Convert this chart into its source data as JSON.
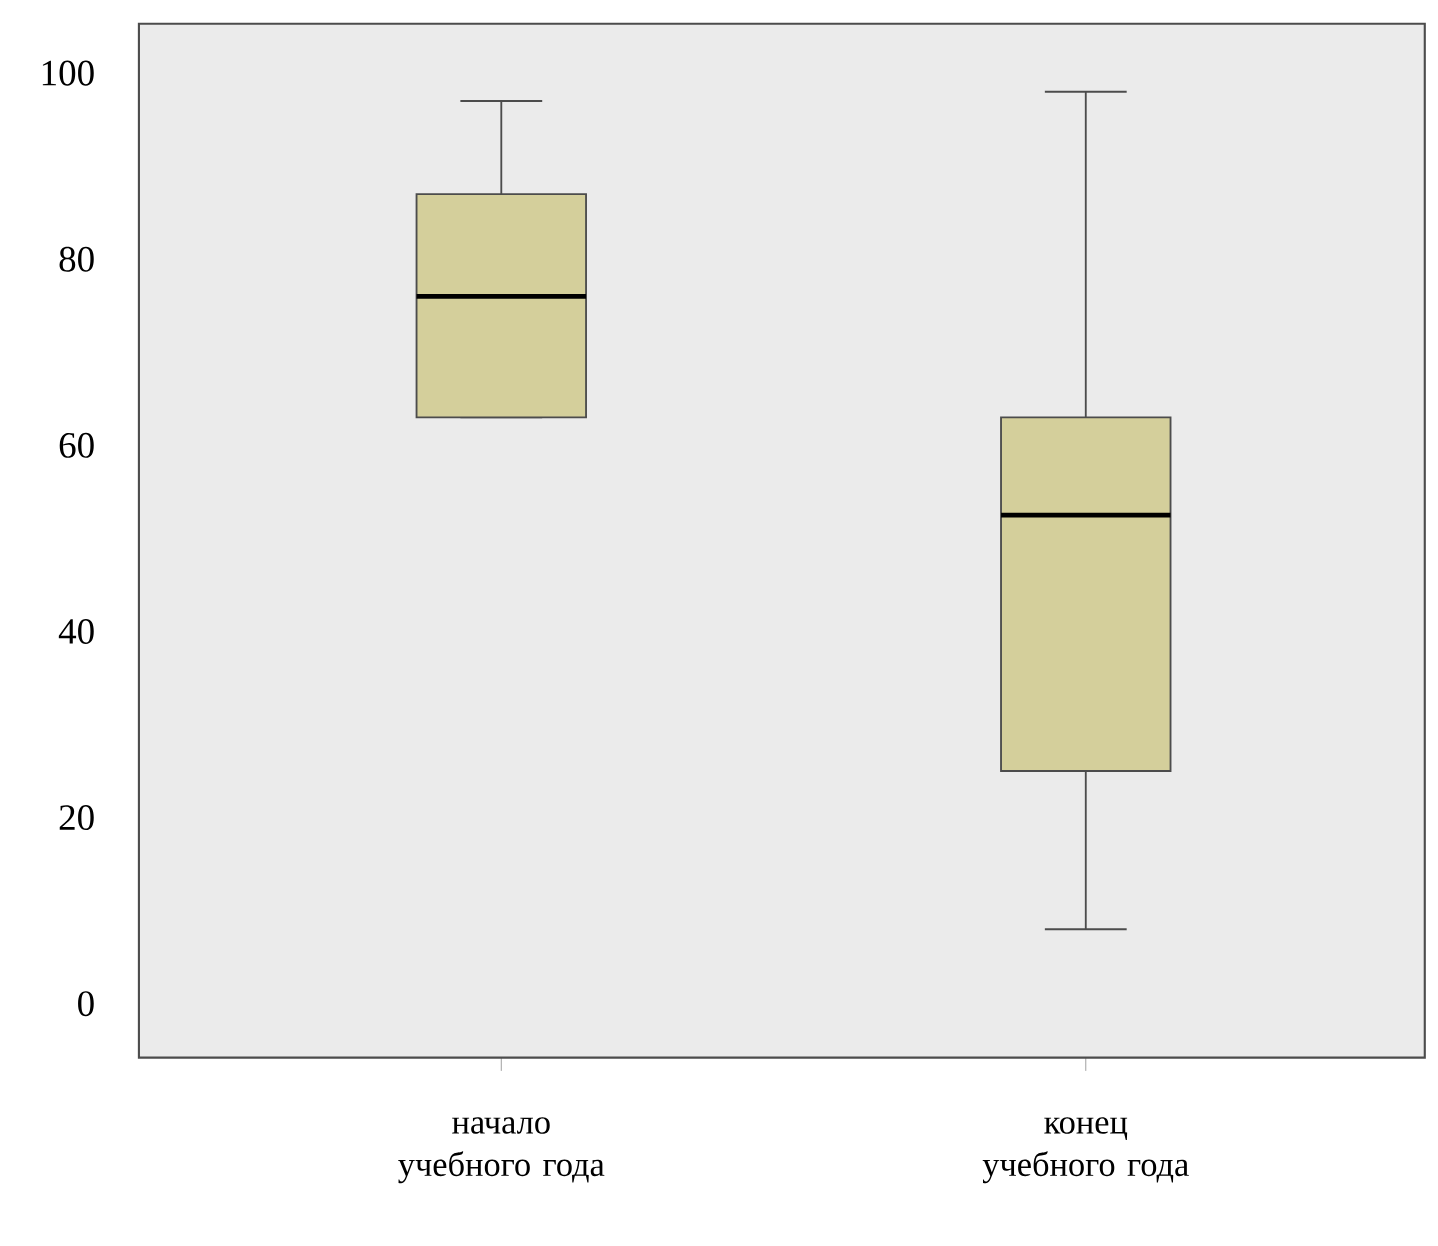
{
  "chart_data": {
    "type": "box",
    "categories": [
      "начало учебного года",
      "конец учебного года"
    ],
    "boxes": [
      {
        "low": 63,
        "q1": 63,
        "median": 76,
        "q3": 87,
        "high": 97
      },
      {
        "low": 8,
        "q1": 25,
        "median": 52.5,
        "q3": 63,
        "high": 98
      }
    ],
    "color": "#d4cf9b",
    "ylim": [
      -5.8,
      105.3
    ],
    "yticks": [
      0,
      20,
      40,
      60,
      80,
      100
    ],
    "grid": false
  }
}
